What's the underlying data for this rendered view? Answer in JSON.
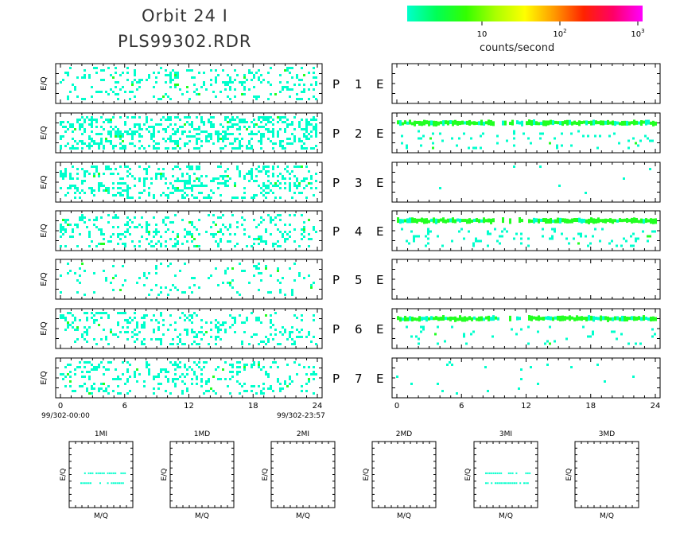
{
  "header": {
    "orbit_title": "Orbit 24 I",
    "file_title": "PLS99302.RDR"
  },
  "colorbar": {
    "label": "counts/second",
    "ticks": [
      {
        "base": "10",
        "exp": ""
      },
      {
        "base": "10",
        "exp": "2"
      },
      {
        "base": "10",
        "exp": "3"
      }
    ],
    "gradient": [
      "#00ffcc",
      "#00ff55",
      "#33ff00",
      "#aaff00",
      "#ffff00",
      "#ff9900",
      "#ff2200",
      "#ff0066",
      "#ff00ff"
    ]
  },
  "panel_labels": {
    "ylabel": "E/Q",
    "small_xlabel": "M/Q"
  },
  "rows": [
    {
      "p": "P",
      "n": "1",
      "e": "E"
    },
    {
      "p": "P",
      "n": "2",
      "e": "E"
    },
    {
      "p": "P",
      "n": "3",
      "e": "E"
    },
    {
      "p": "P",
      "n": "4",
      "e": "E"
    },
    {
      "p": "P",
      "n": "5",
      "e": "E"
    },
    {
      "p": "P",
      "n": "6",
      "e": "E"
    },
    {
      "p": "P",
      "n": "7",
      "e": "E"
    }
  ],
  "time_axis": {
    "ticks": [
      "0",
      "6",
      "12",
      "18",
      "24"
    ],
    "start_label": "99/302-00:00",
    "end_label": "99/302-23:57"
  },
  "small_panels": [
    {
      "title": "1MI"
    },
    {
      "title": "1MD"
    },
    {
      "title": "2MI"
    },
    {
      "title": "2MD"
    },
    {
      "title": "3MI"
    },
    {
      "title": "3MD"
    }
  ],
  "colors": {
    "low": "#00ffcc",
    "mid": "#22ff22",
    "axis": "#000000"
  },
  "chart_data": {
    "type": "heatmap",
    "x_range_hours": [
      0,
      24
    ],
    "x_unit": "hours",
    "left_panel_density": [
      0.25,
      0.55,
      0.4,
      0.3,
      0.12,
      0.28,
      0.3
    ],
    "right_panels": [
      {
        "density": 0.0,
        "band": false
      },
      {
        "density": 0.12,
        "band": true,
        "band_level": 0.25
      },
      {
        "density": 0.005,
        "band": false
      },
      {
        "density": 0.18,
        "band": true,
        "band_level": 0.25
      },
      {
        "density": 0.0,
        "band": false
      },
      {
        "density": 0.1,
        "band": true,
        "band_level": 0.25
      },
      {
        "density": 0.02,
        "band": false
      }
    ],
    "small_panel_lines": [
      true,
      false,
      false,
      false,
      true,
      false
    ]
  }
}
